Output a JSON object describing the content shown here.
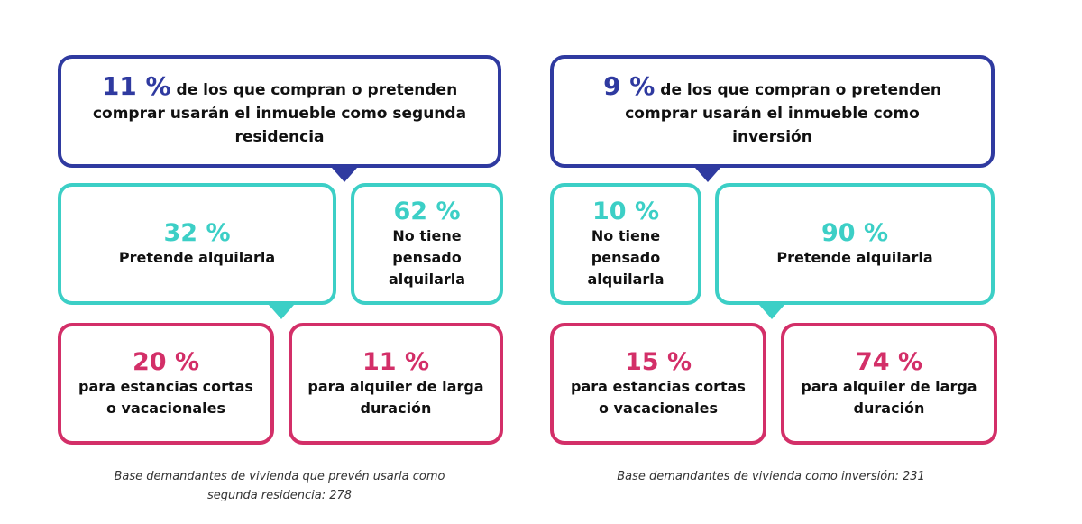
{
  "colors": {
    "blue": "#2f3aa0",
    "teal": "#3ccfc6",
    "pink": "#d32f68"
  },
  "left": {
    "top": {
      "pct": "11 %",
      "text": "de los que compran o pretenden comprar usarán el inmueble como segunda residencia"
    },
    "rent": {
      "pct": "32 %",
      "label": "Pretende alquilarla"
    },
    "norent": {
      "pct": "62 %",
      "label": "No tiene pensado alquilarla"
    },
    "short": {
      "pct": "20 %",
      "label": "para estancias cortas o vacacionales"
    },
    "long": {
      "pct": "11 %",
      "label": "para alquiler de larga duración"
    },
    "caption": "Base demandantes de vivienda que prevén usarla como segunda residencia: 278"
  },
  "right": {
    "top": {
      "pct": "9 %",
      "text": "de los que compran o pretenden comprar usarán el inmueble como inversión"
    },
    "norent": {
      "pct": "10 %",
      "label": "No tiene pensado alquilarla"
    },
    "rent": {
      "pct": "90 %",
      "label": "Pretende alquilarla"
    },
    "short": {
      "pct": "15 %",
      "label": "para estancias cortas o vacacionales"
    },
    "long": {
      "pct": "74 %",
      "label": "para alquiler de larga duración"
    },
    "caption": "Base demandantes de vivienda como inversión: 231"
  }
}
